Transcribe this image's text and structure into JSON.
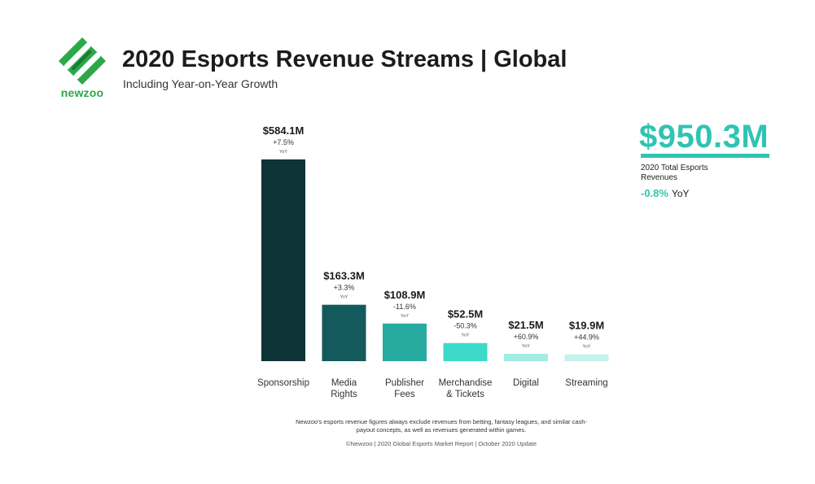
{
  "brand": {
    "name": "newzoo"
  },
  "header": {
    "title": "2020 Esports Revenue Streams | Global",
    "subtitle": "Including Year-on-Year Growth"
  },
  "total": {
    "value": "$950.3M",
    "label": "2020 Total Esports Revenues",
    "growth": "-0.8%",
    "growth_suffix": "YoY"
  },
  "footer": {
    "note": "Newzoo's esports revenue figures always exclude revenues from betting, fantasy leagues, and similar cash-payout concepts, as well as revenues generated within games.",
    "source": "©Newzoo | 2020 Global Esports Market Report | October 2020 Update"
  },
  "chart_data": {
    "type": "bar",
    "categories": [
      [
        "Sponsorship"
      ],
      [
        "Media",
        "Rights"
      ],
      [
        "Publisher",
        "Fees"
      ],
      [
        "Merchandise",
        "& Tickets"
      ],
      [
        "Digital"
      ],
      [
        "Streaming"
      ]
    ],
    "values": [
      584.1,
      163.3,
      108.9,
      52.5,
      21.5,
      19.9
    ],
    "value_labels": [
      "$584.1M",
      "$163.3M",
      "$108.9M",
      "$52.5M",
      "$21.5M",
      "$19.9M"
    ],
    "growth_labels": [
      "+7.5%",
      "+3.3%",
      "-11.6%",
      "-50.3%",
      "+60.9%",
      "+44.9%"
    ],
    "growth_suffix": "YoY",
    "colors": [
      "#0e3437",
      "#14595b",
      "#27aba1",
      "#3dd9c9",
      "#a2ece4",
      "#c4f2ec"
    ],
    "ylim": [
      0,
      584.1
    ],
    "grid": false
  }
}
